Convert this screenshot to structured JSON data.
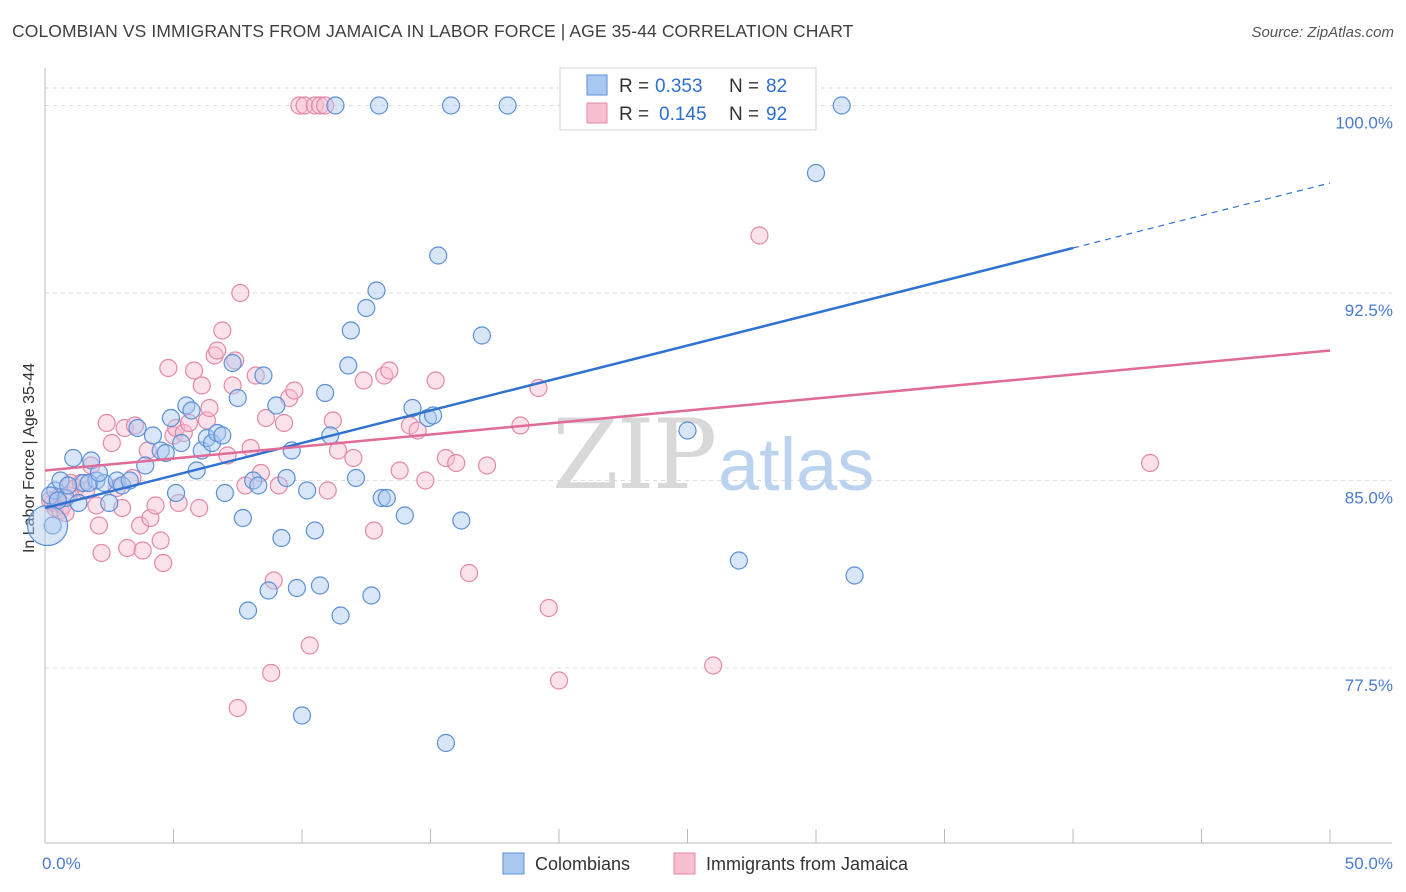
{
  "header": {
    "title": "COLOMBIAN VS IMMIGRANTS FROM JAMAICA IN LABOR FORCE | AGE 35-44 CORRELATION CHART",
    "source": "Source: ZipAtlas.com"
  },
  "watermark": {
    "zip": "ZIP",
    "atlas": "atlas"
  },
  "legend": {
    "rows": [
      {
        "r_label": "R =",
        "r_value": "0.353",
        "n_label": "N =",
        "n_value": "82"
      },
      {
        "r_label": "R =",
        "r_value": "0.145",
        "n_label": "N =",
        "n_value": "92"
      }
    ]
  },
  "bottom_legend": [
    "Colombians",
    "Immigrants from Jamaica"
  ],
  "colors": {
    "blue_fill": "#a9c8f0",
    "blue_stroke": "#5b8fd8",
    "blue_line": "#2f72d0",
    "pink_fill": "#f6bfd0",
    "pink_stroke": "#e487a6",
    "pink_line": "#e06b97",
    "grid": "#dcdcdc",
    "tick_label": "#4a7bd0"
  },
  "chart_data": {
    "type": "scatter",
    "ylabel": "In Labor Force | Age 35-44",
    "xlim": [
      0,
      50
    ],
    "ylim": [
      70.5,
      101.5
    ],
    "x_tick_labels": [
      {
        "value": 0,
        "label": "0.0%"
      },
      {
        "value": 50,
        "label": "50.0%"
      }
    ],
    "y_tick_labels": [
      {
        "value": 77.5,
        "label": "77.5%"
      },
      {
        "value": 85.0,
        "label": "85.0%"
      },
      {
        "value": 92.5,
        "label": "92.5%"
      },
      {
        "value": 100.0,
        "label": "100.0%"
      }
    ],
    "y_gridlines": [
      77.5,
      85.0,
      92.5,
      100.0,
      100.7
    ],
    "series": [
      {
        "name": "Colombians",
        "color": "#a9c8f0",
        "trend": {
          "x0": 0,
          "y0": 83.9,
          "x1": 40,
          "y1": 94.3,
          "dashed_to_x": 50,
          "dashed_to_y": 96.9
        },
        "points": [
          [
            0.4,
            84.6
          ],
          [
            0.6,
            85.0
          ],
          [
            0.8,
            84.3
          ],
          [
            1.1,
            85.9
          ],
          [
            1.3,
            84.1
          ],
          [
            1.5,
            84.9
          ],
          [
            1.8,
            85.8
          ],
          [
            2.0,
            85.0
          ],
          [
            2.3,
            84.9
          ],
          [
            2.5,
            84.1
          ],
          [
            2.8,
            85.0
          ],
          [
            3.0,
            84.8
          ],
          [
            3.3,
            85.0
          ],
          [
            3.6,
            87.1
          ],
          [
            3.9,
            85.6
          ],
          [
            4.2,
            86.8
          ],
          [
            4.5,
            86.2
          ],
          [
            4.7,
            86.1
          ],
          [
            4.9,
            87.5
          ],
          [
            5.1,
            84.5
          ],
          [
            5.3,
            86.5
          ],
          [
            5.5,
            88.0
          ],
          [
            5.7,
            87.8
          ],
          [
            5.9,
            85.4
          ],
          [
            6.1,
            86.2
          ],
          [
            6.3,
            86.7
          ],
          [
            6.5,
            86.5
          ],
          [
            6.7,
            86.9
          ],
          [
            6.9,
            86.8
          ],
          [
            7.0,
            84.5
          ],
          [
            7.3,
            89.7
          ],
          [
            7.5,
            88.3
          ],
          [
            7.7,
            83.5
          ],
          [
            7.9,
            79.8
          ],
          [
            8.1,
            85.0
          ],
          [
            8.3,
            84.8
          ],
          [
            8.5,
            89.2
          ],
          [
            8.7,
            80.6
          ],
          [
            9.0,
            88.0
          ],
          [
            9.2,
            82.7
          ],
          [
            9.4,
            85.1
          ],
          [
            9.6,
            86.2
          ],
          [
            9.8,
            80.7
          ],
          [
            10.0,
            75.6
          ],
          [
            10.2,
            84.6
          ],
          [
            10.5,
            83.0
          ],
          [
            10.7,
            80.8
          ],
          [
            10.9,
            88.5
          ],
          [
            11.1,
            86.8
          ],
          [
            11.3,
            100.0
          ],
          [
            11.5,
            79.6
          ],
          [
            11.8,
            89.6
          ],
          [
            11.9,
            91.0
          ],
          [
            12.1,
            85.1
          ],
          [
            12.5,
            91.9
          ],
          [
            12.7,
            80.4
          ],
          [
            12.9,
            92.6
          ],
          [
            13.1,
            84.3
          ],
          [
            13.3,
            84.3
          ],
          [
            13.0,
            100.0
          ],
          [
            14.0,
            83.6
          ],
          [
            14.3,
            87.9
          ],
          [
            14.9,
            87.5
          ],
          [
            15.1,
            87.6
          ],
          [
            15.3,
            94.0
          ],
          [
            15.6,
            74.5
          ],
          [
            15.8,
            100.0
          ],
          [
            16.2,
            83.4
          ],
          [
            17.0,
            90.8
          ],
          [
            18.0,
            100.0
          ],
          [
            20.5,
            100.0
          ],
          [
            25.0,
            87.0
          ],
          [
            27.0,
            81.8
          ],
          [
            30.0,
            97.3
          ],
          [
            31.0,
            100.0
          ],
          [
            31.5,
            81.2
          ],
          [
            0.2,
            84.4
          ],
          [
            0.3,
            83.2
          ],
          [
            0.5,
            84.2
          ],
          [
            0.9,
            84.8
          ],
          [
            1.7,
            84.9
          ],
          [
            2.1,
            85.3
          ]
        ]
      },
      {
        "name": "Immigrants from Jamaica",
        "color": "#f6bfd0",
        "trend": {
          "x0": 0,
          "y0": 85.4,
          "x1": 50,
          "y1": 90.2
        },
        "points": [
          [
            0.3,
            84.1
          ],
          [
            0.4,
            83.9
          ],
          [
            0.5,
            84.3
          ],
          [
            0.6,
            83.8
          ],
          [
            0.7,
            84.0
          ],
          [
            0.9,
            84.4
          ],
          [
            1.0,
            84.9
          ],
          [
            1.2,
            84.7
          ],
          [
            1.4,
            84.9
          ],
          [
            1.6,
            84.6
          ],
          [
            1.8,
            85.6
          ],
          [
            2.0,
            84.0
          ],
          [
            2.1,
            83.2
          ],
          [
            2.2,
            82.1
          ],
          [
            2.4,
            87.3
          ],
          [
            2.6,
            86.5
          ],
          [
            2.8,
            84.7
          ],
          [
            3.0,
            83.9
          ],
          [
            3.1,
            87.1
          ],
          [
            3.2,
            82.3
          ],
          [
            3.4,
            85.1
          ],
          [
            3.5,
            87.2
          ],
          [
            3.7,
            83.2
          ],
          [
            3.8,
            82.2
          ],
          [
            4.0,
            86.2
          ],
          [
            4.1,
            83.5
          ],
          [
            4.3,
            84.0
          ],
          [
            4.5,
            82.6
          ],
          [
            4.6,
            81.7
          ],
          [
            4.8,
            89.5
          ],
          [
            5.0,
            86.8
          ],
          [
            5.1,
            87.1
          ],
          [
            5.2,
            84.1
          ],
          [
            5.4,
            86.9
          ],
          [
            5.6,
            87.3
          ],
          [
            5.8,
            89.4
          ],
          [
            6.0,
            83.9
          ],
          [
            6.1,
            88.8
          ],
          [
            6.3,
            87.4
          ],
          [
            6.4,
            87.9
          ],
          [
            6.6,
            90.0
          ],
          [
            6.7,
            90.2
          ],
          [
            6.9,
            91.0
          ],
          [
            7.1,
            86.0
          ],
          [
            7.3,
            88.8
          ],
          [
            7.4,
            89.8
          ],
          [
            7.5,
            75.9
          ],
          [
            7.6,
            92.5
          ],
          [
            7.8,
            84.8
          ],
          [
            8.0,
            86.3
          ],
          [
            8.2,
            89.2
          ],
          [
            8.4,
            85.3
          ],
          [
            8.6,
            87.5
          ],
          [
            8.8,
            77.3
          ],
          [
            8.9,
            81.0
          ],
          [
            9.1,
            84.8
          ],
          [
            9.3,
            87.3
          ],
          [
            9.5,
            88.3
          ],
          [
            9.7,
            88.6
          ],
          [
            9.9,
            100.0
          ],
          [
            10.1,
            100.0
          ],
          [
            10.3,
            78.4
          ],
          [
            10.5,
            100.0
          ],
          [
            10.7,
            100.0
          ],
          [
            10.9,
            100.0
          ],
          [
            11.0,
            84.6
          ],
          [
            11.2,
            87.4
          ],
          [
            11.4,
            86.2
          ],
          [
            12.0,
            85.9
          ],
          [
            12.4,
            89.0
          ],
          [
            12.8,
            83.0
          ],
          [
            13.2,
            89.2
          ],
          [
            13.4,
            89.4
          ],
          [
            13.8,
            85.4
          ],
          [
            14.2,
            87.2
          ],
          [
            14.5,
            87.0
          ],
          [
            14.8,
            85.0
          ],
          [
            15.2,
            89.0
          ],
          [
            15.6,
            85.9
          ],
          [
            16.0,
            85.7
          ],
          [
            16.5,
            81.3
          ],
          [
            17.2,
            85.6
          ],
          [
            18.5,
            87.2
          ],
          [
            19.2,
            88.7
          ],
          [
            19.6,
            79.9
          ],
          [
            20.0,
            77.0
          ],
          [
            21.0,
            100.0
          ],
          [
            26.0,
            77.6
          ],
          [
            27.8,
            94.8
          ],
          [
            43.0,
            85.7
          ],
          [
            0.2,
            84.2
          ],
          [
            0.8,
            83.7
          ]
        ]
      }
    ]
  }
}
